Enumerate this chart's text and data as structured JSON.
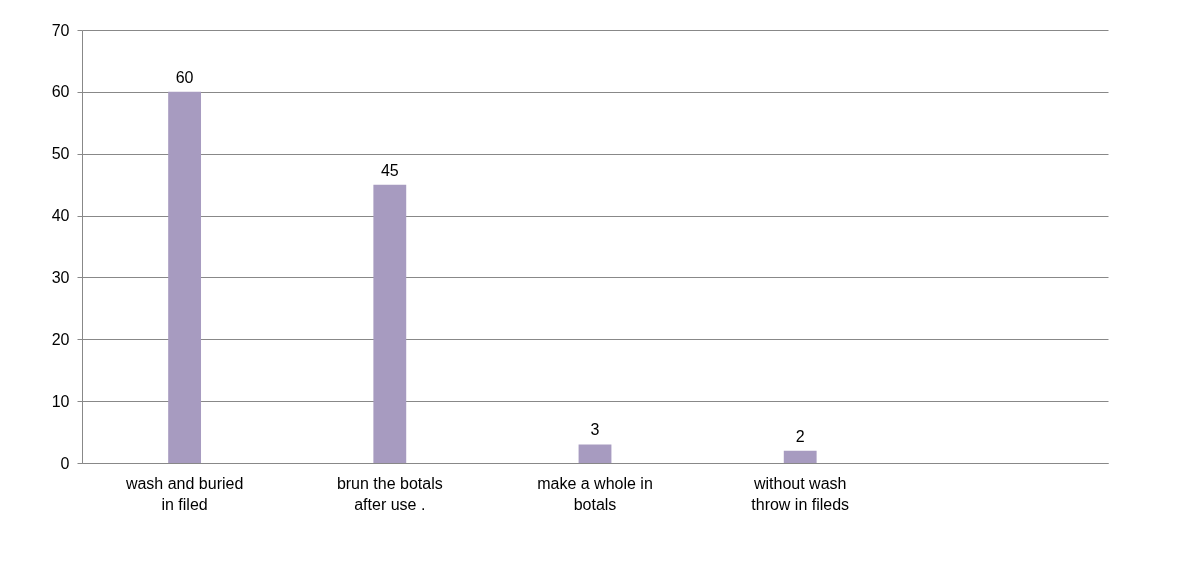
{
  "chart_data": {
    "type": "bar",
    "categories": [
      "wash and buried in filed",
      "brun the botals after use .",
      "make a whole in botals",
      "without wash throw in fileds",
      null
    ],
    "values": [
      60,
      45,
      3,
      2,
      null
    ],
    "color": "#a79bc0",
    "ylim": [
      0,
      70
    ],
    "yticks": [
      0,
      10,
      20,
      30,
      40,
      50,
      60,
      70
    ],
    "grid": "y",
    "data_labels": true
  }
}
